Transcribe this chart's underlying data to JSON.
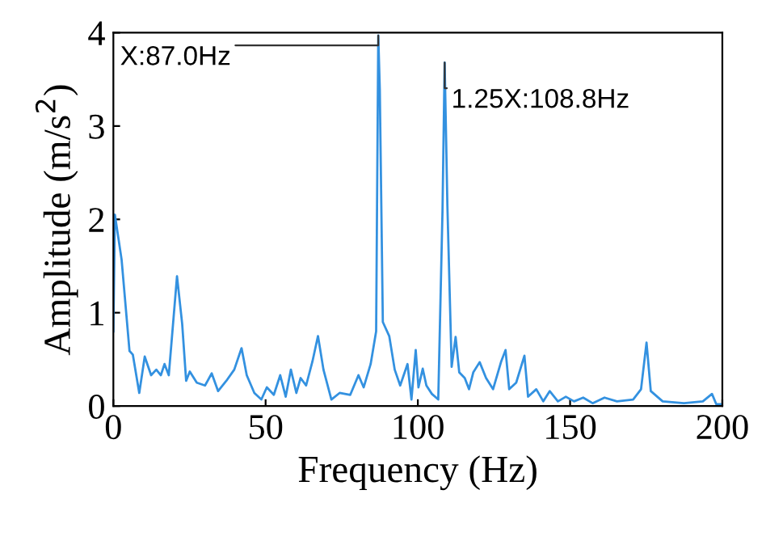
{
  "chart_data": {
    "type": "line",
    "xlabel": "Frequency (Hz)",
    "ylabel": "Amplitude (m/s$^{2}$)",
    "xlim": [
      0,
      200
    ],
    "ylim": [
      0,
      4
    ],
    "xticks": [
      0,
      50,
      100,
      150,
      200
    ],
    "yticks": [
      0,
      1,
      2,
      3,
      4
    ],
    "grid": false,
    "marker": "none",
    "line_style": "solid",
    "series": [
      {
        "color": "#3391e0",
        "x": [
          0,
          0.5,
          2.7,
          5.3,
          6.4,
          8.5,
          10.3,
          12.4,
          14.1,
          15.6,
          16.8,
          18.2,
          20.9,
          22.6,
          23.9,
          25.1,
          27.4,
          30.1,
          32.3,
          34.4,
          37.1,
          39.7,
          42.1,
          43.8,
          46.3,
          48.6,
          50.4,
          52.7,
          54.8,
          56.6,
          58.3,
          60.1,
          61.5,
          63.3,
          65.4,
          67.2,
          69.0,
          71.6,
          74.3,
          77.8,
          80.5,
          82.2,
          84.5,
          86.3,
          87.0,
          87.5,
          88.5,
          90.6,
          92.4,
          94.2,
          96.6,
          97.9,
          99.3,
          100.2,
          101.6,
          102.8,
          104.6,
          106.7,
          108.1,
          108.8,
          109.7,
          111.1,
          112.4,
          113.6,
          115.4,
          116.8,
          118.2,
          120.3,
          122.4,
          124.7,
          127.4,
          128.8,
          130.0,
          132.3,
          135.0,
          136.2,
          138.9,
          141.2,
          143.3,
          146.0,
          148.6,
          151.3,
          154.3,
          157.4,
          161.3,
          165.4,
          170.7,
          173.3,
          175.1,
          176.5,
          180.4,
          187.4,
          193.6,
          196.6,
          198.0,
          200
        ],
        "values": [
          0.8,
          2.05,
          1.57,
          0.59,
          0.55,
          0.14,
          0.53,
          0.33,
          0.39,
          0.33,
          0.45,
          0.33,
          1.39,
          0.88,
          0.27,
          0.37,
          0.25,
          0.22,
          0.35,
          0.16,
          0.27,
          0.39,
          0.62,
          0.33,
          0.14,
          0.07,
          0.2,
          0.12,
          0.33,
          0.1,
          0.39,
          0.14,
          0.3,
          0.22,
          0.48,
          0.75,
          0.39,
          0.07,
          0.14,
          0.12,
          0.33,
          0.2,
          0.45,
          0.8,
          3.97,
          3.4,
          0.9,
          0.75,
          0.39,
          0.22,
          0.45,
          0.07,
          0.6,
          0.2,
          0.4,
          0.22,
          0.13,
          0.07,
          2.1,
          3.68,
          2.15,
          0.42,
          0.74,
          0.36,
          0.3,
          0.18,
          0.36,
          0.47,
          0.3,
          0.18,
          0.48,
          0.6,
          0.18,
          0.25,
          0.54,
          0.1,
          0.18,
          0.05,
          0.16,
          0.05,
          0.1,
          0.05,
          0.09,
          0.03,
          0.09,
          0.05,
          0.07,
          0.18,
          0.68,
          0.16,
          0.05,
          0.03,
          0.05,
          0.13,
          0.02,
          0.02
        ]
      }
    ],
    "annotations": [
      {
        "text": "X:87.0Hz",
        "x": 87.0,
        "y": 3.97
      },
      {
        "text": "1.25X:108.8Hz",
        "x": 108.8,
        "y": 3.68
      }
    ]
  }
}
